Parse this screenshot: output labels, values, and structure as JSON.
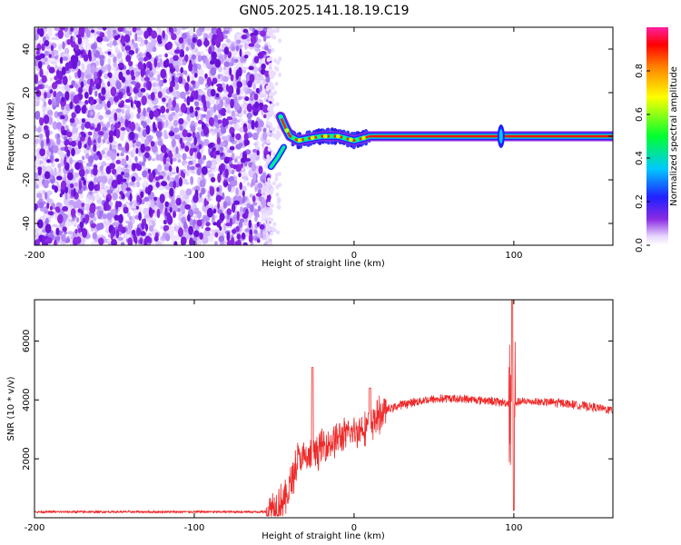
{
  "title": "GN05.2025.141.18.19.C19",
  "chart_data": [
    {
      "type": "heatmap",
      "xlabel": "Height of straight line (km)",
      "ylabel": "Frequency (Hz)",
      "xlim": [
        -200,
        162
      ],
      "ylim": [
        -50,
        50
      ],
      "xticks": [
        -200,
        -100,
        0,
        100
      ],
      "yticks": [
        -40,
        -20,
        0,
        20,
        40
      ],
      "noise_region_x": [
        -200,
        -52
      ],
      "ridge": [
        {
          "x": -46,
          "y": 9
        },
        {
          "x": -43,
          "y": 4
        },
        {
          "x": -40,
          "y": 0
        },
        {
          "x": -35,
          "y": -2
        },
        {
          "x": -28,
          "y": -1
        },
        {
          "x": -20,
          "y": 0
        },
        {
          "x": -10,
          "y": 0
        },
        {
          "x": 0,
          "y": -2
        },
        {
          "x": 5,
          "y": -1
        },
        {
          "x": 10,
          "y": 0
        },
        {
          "x": 162,
          "y": 0
        }
      ],
      "lower_branch": [
        {
          "x": -52,
          "y": -14
        },
        {
          "x": -48,
          "y": -10
        },
        {
          "x": -44,
          "y": -5
        }
      ],
      "colorbar": {
        "label": "Normalized spectral amplitude",
        "ticks": [
          "0.0",
          "0.2",
          "0.4",
          "0.6",
          "0.8"
        ],
        "range": [
          0,
          1
        ]
      }
    },
    {
      "type": "line",
      "xlabel": "Height of straight line (km)",
      "ylabel": "SNR (10 * v/v)",
      "xlim": [
        -200,
        162
      ],
      "ylim": [
        0,
        7400
      ],
      "xticks": [
        -200,
        -100,
        0,
        100
      ],
      "yticks": [
        2000,
        4000,
        6000
      ],
      "series": [
        {
          "color": "#ee2a2a",
          "envelope": [
            {
              "x": -200,
              "y": 200
            },
            {
              "x": -55,
              "y": 200
            },
            {
              "x": -42,
              "y": 700
            },
            {
              "x": -35,
              "y": 2000
            },
            {
              "x": -28,
              "y": 2000
            },
            {
              "x": -20,
              "y": 2400
            },
            {
              "x": -10,
              "y": 2700
            },
            {
              "x": 0,
              "y": 2900
            },
            {
              "x": 10,
              "y": 3200
            },
            {
              "x": 20,
              "y": 3650
            },
            {
              "x": 30,
              "y": 3850
            },
            {
              "x": 45,
              "y": 4000
            },
            {
              "x": 60,
              "y": 4050
            },
            {
              "x": 80,
              "y": 4000
            },
            {
              "x": 95,
              "y": 3900
            },
            {
              "x": 110,
              "y": 3950
            },
            {
              "x": 130,
              "y": 3900
            },
            {
              "x": 150,
              "y": 3750
            },
            {
              "x": 162,
              "y": 3650
            }
          ],
          "spikes": [
            {
              "x": -26,
              "y": 5100
            },
            {
              "x": 10,
              "y": 4400
            },
            {
              "x": 99,
              "y": 7400
            },
            {
              "x": 100,
              "y": 250
            }
          ]
        }
      ]
    }
  ]
}
